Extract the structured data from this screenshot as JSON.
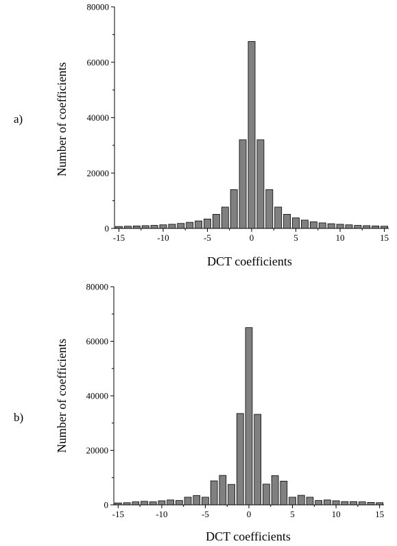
{
  "colors": {
    "bar_fill": "#808080",
    "bar_stroke": "#000000",
    "axis": "#000000"
  },
  "chart_data": [
    {
      "type": "bar",
      "panel_label": "a)",
      "xlabel": "DCT coefficients",
      "ylabel": "Number of coefficients",
      "xlim": [
        -15.5,
        15.5
      ],
      "ylim": [
        0,
        80000
      ],
      "xticks": [
        "-15",
        "-10",
        "-5",
        "0",
        "5",
        "10",
        "15"
      ],
      "yticks": [
        "0",
        "20000",
        "40000",
        "60000",
        "80000"
      ],
      "categories": [
        -15,
        -14,
        -13,
        -12,
        -11,
        -10,
        -9,
        -8,
        -7,
        -6,
        -5,
        -4,
        -3,
        -2,
        -1,
        0,
        1,
        2,
        3,
        4,
        5,
        6,
        7,
        8,
        9,
        10,
        11,
        12,
        13,
        14,
        15
      ],
      "values": [
        700,
        800,
        900,
        1000,
        1100,
        1300,
        1500,
        1800,
        2200,
        2700,
        3400,
        5100,
        7700,
        14000,
        32000,
        67500,
        32000,
        14000,
        7700,
        5100,
        3800,
        3000,
        2400,
        2000,
        1700,
        1500,
        1300,
        1100,
        1000,
        900,
        800
      ],
      "grid": false
    },
    {
      "type": "bar",
      "panel_label": "b)",
      "xlabel": "DCT coefficients",
      "ylabel": "Number of coefficients",
      "xlim": [
        -15.5,
        15.5
      ],
      "ylim": [
        0,
        80000
      ],
      "xticks": [
        "-15",
        "-10",
        "-5",
        "0",
        "5",
        "10",
        "15"
      ],
      "yticks": [
        "0",
        "20000",
        "40000",
        "60000",
        "80000"
      ],
      "categories": [
        -15,
        -14,
        -13,
        -12,
        -11,
        -10,
        -9,
        -8,
        -7,
        -6,
        -5,
        -4,
        -3,
        -2,
        -1,
        0,
        1,
        2,
        3,
        4,
        5,
        6,
        7,
        8,
        9,
        10,
        11,
        12,
        13,
        14,
        15
      ],
      "values": [
        700,
        800,
        1100,
        1300,
        1100,
        1500,
        1800,
        1600,
        2800,
        3400,
        2800,
        8800,
        10800,
        7500,
        33500,
        65000,
        33200,
        7600,
        10700,
        8700,
        2800,
        3500,
        2800,
        1600,
        1800,
        1500,
        1200,
        1200,
        1100,
        900,
        800
      ],
      "grid": false
    }
  ]
}
